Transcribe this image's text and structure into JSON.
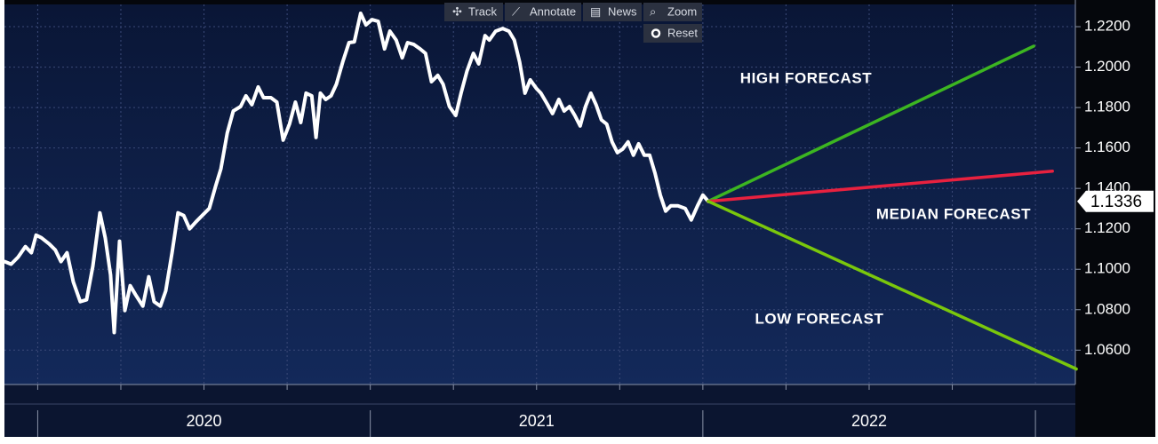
{
  "toolbar": {
    "buttons": [
      "Track",
      "Annotate",
      "News",
      "Zoom"
    ],
    "reset": "Reset"
  },
  "chart_data": {
    "type": "line",
    "xlim": [
      2019.9,
      2023.12
    ],
    "xticks": [
      2020,
      2021,
      2022
    ],
    "ylim": [
      1.043,
      1.231
    ],
    "yticks": [
      {
        "value": 1.06,
        "label": "1.0600"
      },
      {
        "value": 1.08,
        "label": "1.0800"
      },
      {
        "value": 1.1,
        "label": "1.1000"
      },
      {
        "value": 1.12,
        "label": "1.1200"
      },
      {
        "value": 1.14,
        "label": "1.1400"
      },
      {
        "value": 1.16,
        "label": "1.1600"
      },
      {
        "value": 1.18,
        "label": "1.1800"
      },
      {
        "value": 1.2,
        "label": "1.2000"
      },
      {
        "value": 1.22,
        "label": "1.2200"
      }
    ],
    "grid": true,
    "last_price": 1.1336,
    "series": [
      {
        "color": "#ffffff",
        "x": [
          2019.901,
          2019.92,
          2019.941,
          2019.963,
          2019.981,
          2019.995,
          2020.011,
          2020.035,
          2020.053,
          2020.07,
          2020.088,
          2020.107,
          2020.128,
          2020.147,
          2020.166,
          2020.187,
          2020.203,
          2020.219,
          2020.23,
          2020.246,
          2020.262,
          2020.278,
          2020.294,
          2020.316,
          2020.334,
          2020.35,
          2020.369,
          2020.385,
          2020.404,
          2020.422,
          2020.439,
          2020.457,
          2020.476,
          2020.497,
          2020.516,
          2020.535,
          2020.551,
          2020.57,
          2020.588,
          2020.61,
          2020.626,
          2020.644,
          2020.663,
          2020.679,
          2020.701,
          2020.719,
          2020.738,
          2020.757,
          2020.775,
          2020.791,
          2020.807,
          2020.824,
          2020.837,
          2020.85,
          2020.866,
          2020.882,
          2020.898,
          2020.917,
          2020.936,
          2020.952,
          2020.971,
          2020.987,
          2021.005,
          2021.024,
          2021.043,
          2021.059,
          2021.078,
          2021.096,
          2021.112,
          2021.131,
          2021.15,
          2021.166,
          2021.184,
          2021.203,
          2021.219,
          2021.238,
          2021.257,
          2021.273,
          2021.291,
          2021.31,
          2021.326,
          2021.345,
          2021.358,
          2021.377,
          2021.398,
          2021.417,
          2021.433,
          2021.449,
          2021.465,
          2021.481,
          2021.5,
          2021.513,
          2021.532,
          2021.548,
          2021.567,
          2021.583,
          2021.599,
          2021.615,
          2021.631,
          2021.647,
          2021.663,
          2021.679,
          2021.695,
          2021.711,
          2021.727,
          2021.743,
          2021.759,
          2021.775,
          2021.791,
          2021.807,
          2021.824,
          2021.84,
          2021.856,
          2021.872,
          2021.888,
          2021.904,
          2021.925,
          2021.947,
          2021.965,
          2021.984,
          2022.0,
          2022.016
        ],
        "values": [
          1.1038,
          1.1025,
          1.106,
          1.1112,
          1.1082,
          1.1169,
          1.1156,
          1.1125,
          1.1095,
          1.1038,
          1.1082,
          1.0937,
          1.084,
          1.0849,
          1.1016,
          1.1279,
          1.1156,
          1.0972,
          1.0687,
          1.1139,
          1.0796,
          1.0919,
          1.0875,
          1.0818,
          1.0963,
          1.084,
          1.0818,
          1.0893,
          1.1082,
          1.1279,
          1.1266,
          1.12,
          1.1235,
          1.127,
          1.1301,
          1.1411,
          1.1498,
          1.1674,
          1.1783,
          1.1805,
          1.1858,
          1.1814,
          1.1902,
          1.1849,
          1.1849,
          1.1827,
          1.1639,
          1.1718,
          1.1827,
          1.1726,
          1.1871,
          1.1858,
          1.1652,
          1.1871,
          1.184,
          1.1858,
          1.1915,
          1.2025,
          1.2121,
          1.2125,
          1.2266,
          1.2209,
          1.2235,
          1.2226,
          1.209,
          1.2178,
          1.2134,
          1.2046,
          1.2121,
          1.2112,
          1.209,
          1.2068,
          1.1928,
          1.1959,
          1.1915,
          1.1805,
          1.1761,
          1.1871,
          1.1981,
          1.2068,
          1.2016,
          1.2156,
          1.2134,
          1.2178,
          1.2191,
          1.2178,
          1.2134,
          1.2025,
          1.1871,
          1.1937,
          1.1893,
          1.1871,
          1.1818,
          1.177,
          1.184,
          1.1783,
          1.1805,
          1.1761,
          1.1709,
          1.1805,
          1.1871,
          1.1814,
          1.1739,
          1.1718,
          1.163,
          1.1577,
          1.1595,
          1.163,
          1.1564,
          1.1621,
          1.1564,
          1.1564,
          1.1476,
          1.1367,
          1.1288,
          1.1314,
          1.1314,
          1.1301,
          1.1244,
          1.1314,
          1.1367,
          1.1336
        ]
      },
      {
        "name": "HIGH FORECAST",
        "color": "#3cb521",
        "x": [
          2022.016,
          2022.995
        ],
        "values": [
          1.1336,
          1.2104
        ]
      },
      {
        "name": "MEDIAN FORECAST",
        "color": "#e8213f",
        "x": [
          2022.016,
          2023.051
        ],
        "values": [
          1.1336,
          1.1485
        ]
      },
      {
        "name": "LOW FORECAST",
        "color": "#7ac70c",
        "x": [
          2022.016,
          2023.123
        ],
        "values": [
          1.1336,
          1.0507
        ]
      }
    ]
  }
}
